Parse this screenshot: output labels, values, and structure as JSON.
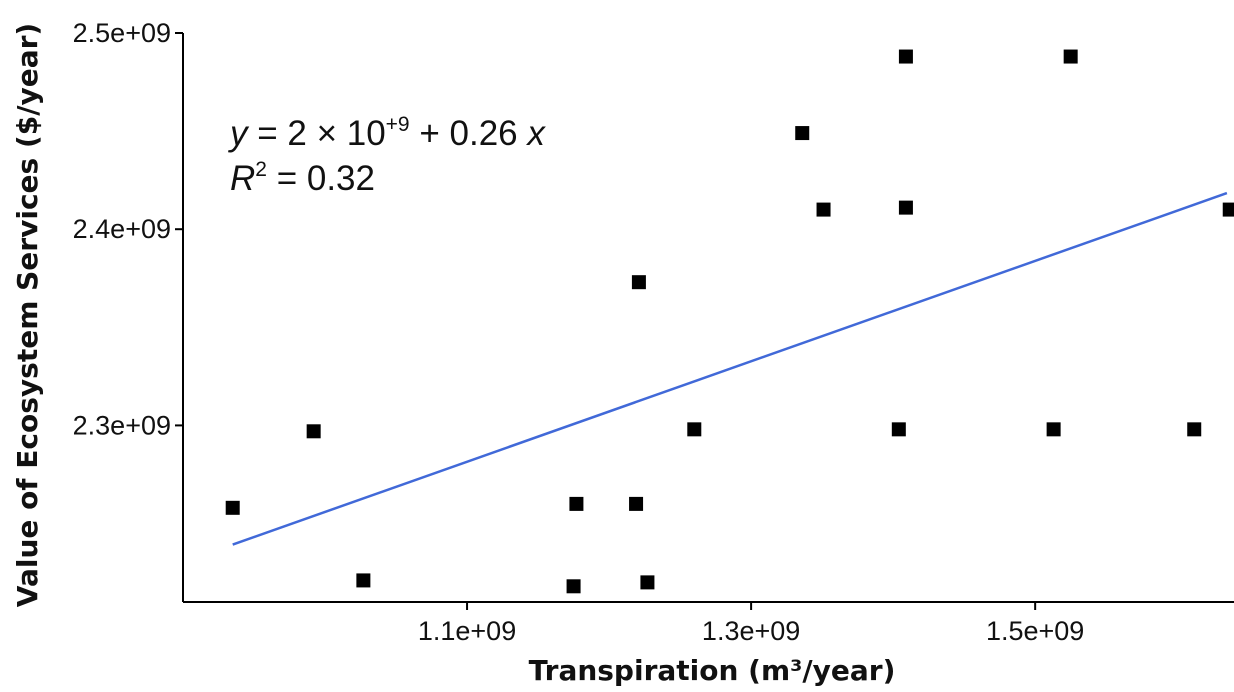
{
  "chart_data": {
    "type": "scatter",
    "title": "",
    "xlabel": "Transpiration (m³/year)",
    "ylabel": "Value of Ecosystem Services ($/year)",
    "xlim": [
      900000000,
      1640000000
    ],
    "ylim": [
      2210000000,
      2500000000
    ],
    "x_ticks": [
      {
        "value": 1100000000,
        "label": "1.1e+09"
      },
      {
        "value": 1300000000,
        "label": "1.3e+09"
      },
      {
        "value": 1500000000,
        "label": "1.5e+09"
      }
    ],
    "y_ticks": [
      {
        "value": 2300000000,
        "label": "2.3e+09"
      },
      {
        "value": 2400000000,
        "label": "2.4e+09"
      },
      {
        "value": 2500000000,
        "label": "2.5e+09"
      }
    ],
    "grid": false,
    "points": [
      {
        "x": 935000000,
        "y": 2258000000
      },
      {
        "x": 992000000,
        "y": 2297000000
      },
      {
        "x": 1027000000,
        "y": 2221000000
      },
      {
        "x": 1177000000,
        "y": 2260000000
      },
      {
        "x": 1175000000,
        "y": 2218000000
      },
      {
        "x": 1219000000,
        "y": 2260000000
      },
      {
        "x": 1221000000,
        "y": 2373000000
      },
      {
        "x": 1227000000,
        "y": 2220000000
      },
      {
        "x": 1260000000,
        "y": 2298000000
      },
      {
        "x": 1336000000,
        "y": 2449000000
      },
      {
        "x": 1351000000,
        "y": 2410000000
      },
      {
        "x": 1409000000,
        "y": 2488000000
      },
      {
        "x": 1409000000,
        "y": 2411000000
      },
      {
        "x": 1404000000,
        "y": 2298000000
      },
      {
        "x": 1513000000,
        "y": 2298000000
      },
      {
        "x": 1525000000,
        "y": 2488000000
      },
      {
        "x": 1612000000,
        "y": 2298000000
      },
      {
        "x": 1637000000,
        "y": 2410000000
      }
    ],
    "trendline": {
      "intercept": 2000000000,
      "slope": 0.2559,
      "x_range": [
        935000000,
        1635000000
      ],
      "color": "#4169d8"
    },
    "marker_color": "#000000",
    "annotations": {
      "equation": {
        "y_var": "y",
        "eq_mid": " = 2 × 10",
        "exponent": "+9",
        "eq_tail": " + 0.26 ",
        "x_var": "x"
      },
      "r_squared": {
        "r_var": "R",
        "exponent": "2",
        "value": " = 0.32"
      }
    }
  }
}
